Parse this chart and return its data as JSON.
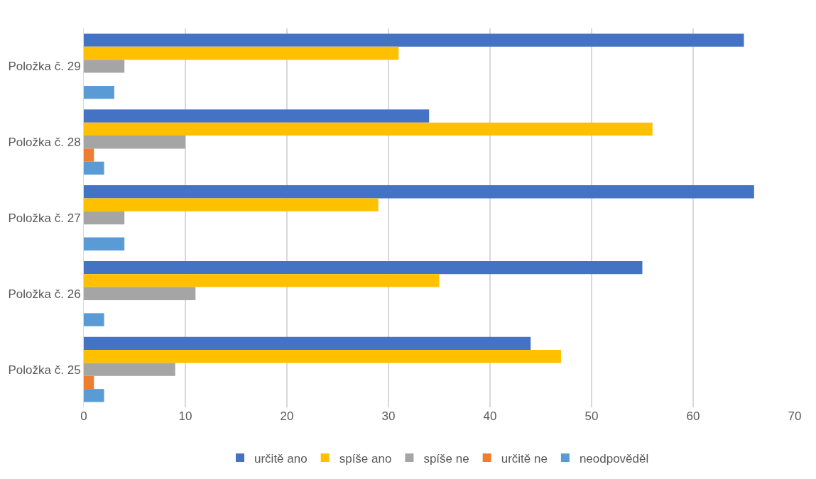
{
  "chart_data": {
    "type": "bar",
    "orientation": "horizontal",
    "categories": [
      "Položka č. 29",
      "Položka č. 28",
      "Položka č. 27",
      "Položka č. 26",
      "Položka č. 25"
    ],
    "series": [
      {
        "name": "určitě ano",
        "color": "#4472c4",
        "values": [
          65,
          34,
          66,
          55,
          44
        ]
      },
      {
        "name": "spíše ano",
        "color": "#ffc000",
        "values": [
          31,
          56,
          29,
          35,
          47
        ]
      },
      {
        "name": "spíše ne",
        "color": "#a5a5a5",
        "values": [
          4,
          10,
          4,
          11,
          9
        ]
      },
      {
        "name": "určitě ne",
        "color": "#ed7d31",
        "values": [
          0,
          1,
          0,
          0,
          1
        ]
      },
      {
        "name": "neodpověděl",
        "color": "#5b9bd5",
        "values": [
          3,
          2,
          4,
          2,
          2
        ]
      }
    ],
    "xlim": [
      0,
      70
    ],
    "xticks": [
      0,
      10,
      20,
      30,
      40,
      50,
      60,
      70
    ],
    "grid": "x",
    "legend": "bottom"
  }
}
